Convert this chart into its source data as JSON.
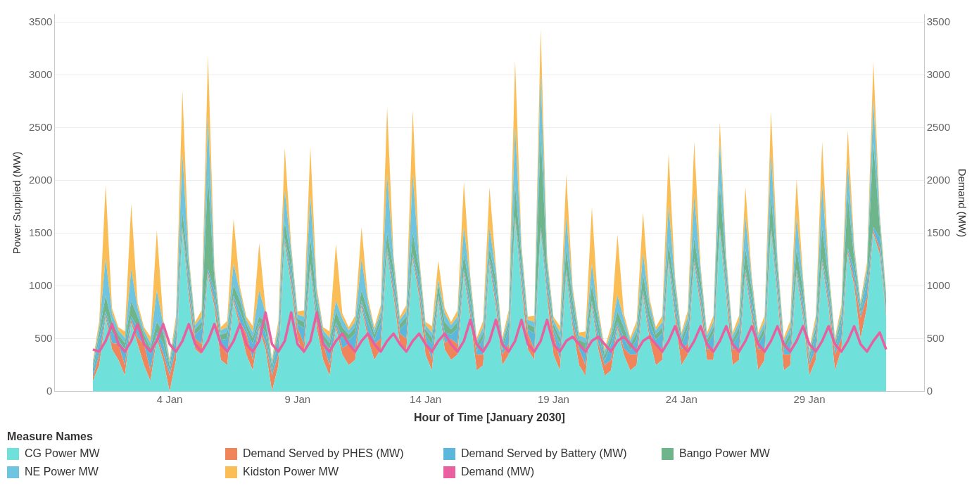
{
  "chart_data": {
    "type": "area",
    "stacked": true,
    "xlabel": "Hour of Time [January 2030]",
    "ylabel": "Power Supplied (MW)",
    "y2label": "Demand (MW)",
    "legend_title": "Measure Names",
    "legend": "bottom",
    "grid": "y",
    "marker": "none",
    "xlim": [
      "2029-12-30T12:00",
      "2030-02-02T12:00"
    ],
    "xticks": [
      {
        "value": "2030-01-04",
        "label": "4 Jan"
      },
      {
        "value": "2030-01-09",
        "label": "9 Jan"
      },
      {
        "value": "2030-01-14",
        "label": "14 Jan"
      },
      {
        "value": "2030-01-19",
        "label": "19 Jan"
      },
      {
        "value": "2030-01-24",
        "label": "24 Jan"
      },
      {
        "value": "2030-01-29",
        "label": "29 Jan"
      }
    ],
    "ylim": [
      0,
      3580
    ],
    "yticks": [
      0,
      500,
      1000,
      1500,
      2000,
      2500,
      3000,
      3500
    ],
    "y2lim": [
      0,
      3580
    ],
    "y2ticks": [
      0,
      500,
      1000,
      1500,
      2000,
      2500,
      3000,
      3500
    ],
    "x": [
      "2030-01-01T00:00",
      "2030-01-01T06:00",
      "2030-01-01T12:00",
      "2030-01-01T18:00",
      "2030-01-02T00:00",
      "2030-01-02T06:00",
      "2030-01-02T12:00",
      "2030-01-02T18:00",
      "2030-01-03T00:00",
      "2030-01-03T06:00",
      "2030-01-03T12:00",
      "2030-01-03T18:00",
      "2030-01-04T00:00",
      "2030-01-04T06:00",
      "2030-01-04T12:00",
      "2030-01-04T18:00",
      "2030-01-05T00:00",
      "2030-01-05T06:00",
      "2030-01-05T12:00",
      "2030-01-05T18:00",
      "2030-01-06T00:00",
      "2030-01-06T06:00",
      "2030-01-06T12:00",
      "2030-01-06T18:00",
      "2030-01-07T00:00",
      "2030-01-07T06:00",
      "2030-01-07T12:00",
      "2030-01-07T18:00",
      "2030-01-08T00:00",
      "2030-01-08T06:00",
      "2030-01-08T12:00",
      "2030-01-08T18:00",
      "2030-01-09T00:00",
      "2030-01-09T06:00",
      "2030-01-09T12:00",
      "2030-01-09T18:00",
      "2030-01-10T00:00",
      "2030-01-10T06:00",
      "2030-01-10T12:00",
      "2030-01-10T18:00",
      "2030-01-11T00:00",
      "2030-01-11T06:00",
      "2030-01-11T12:00",
      "2030-01-11T18:00",
      "2030-01-12T00:00",
      "2030-01-12T06:00",
      "2030-01-12T12:00",
      "2030-01-12T18:00",
      "2030-01-13T00:00",
      "2030-01-13T06:00",
      "2030-01-13T12:00",
      "2030-01-13T18:00",
      "2030-01-14T00:00",
      "2030-01-14T06:00",
      "2030-01-14T12:00",
      "2030-01-14T18:00",
      "2030-01-15T00:00",
      "2030-01-15T06:00",
      "2030-01-15T12:00",
      "2030-01-15T18:00",
      "2030-01-16T00:00",
      "2030-01-16T06:00",
      "2030-01-16T12:00",
      "2030-01-16T18:00",
      "2030-01-17T00:00",
      "2030-01-17T06:00",
      "2030-01-17T12:00",
      "2030-01-17T18:00",
      "2030-01-18T00:00",
      "2030-01-18T06:00",
      "2030-01-18T12:00",
      "2030-01-18T18:00",
      "2030-01-19T00:00",
      "2030-01-19T06:00",
      "2030-01-19T12:00",
      "2030-01-19T18:00",
      "2030-01-20T00:00",
      "2030-01-20T06:00",
      "2030-01-20T12:00",
      "2030-01-20T18:00",
      "2030-01-21T00:00",
      "2030-01-21T06:00",
      "2030-01-21T12:00",
      "2030-01-21T18:00",
      "2030-01-22T00:00",
      "2030-01-22T06:00",
      "2030-01-22T12:00",
      "2030-01-22T18:00",
      "2030-01-23T00:00",
      "2030-01-23T06:00",
      "2030-01-23T12:00",
      "2030-01-23T18:00",
      "2030-01-24T00:00",
      "2030-01-24T06:00",
      "2030-01-24T12:00",
      "2030-01-24T18:00",
      "2030-01-25T00:00",
      "2030-01-25T06:00",
      "2030-01-25T12:00",
      "2030-01-25T18:00",
      "2030-01-26T00:00",
      "2030-01-26T06:00",
      "2030-01-26T12:00",
      "2030-01-26T18:00",
      "2030-01-27T00:00",
      "2030-01-27T06:00",
      "2030-01-27T12:00",
      "2030-01-27T18:00",
      "2030-01-28T00:00",
      "2030-01-28T06:00",
      "2030-01-28T12:00",
      "2030-01-28T18:00",
      "2030-01-29T00:00",
      "2030-01-29T06:00",
      "2030-01-29T12:00",
      "2030-01-29T18:00",
      "2030-01-30T00:00",
      "2030-01-30T06:00",
      "2030-01-30T12:00",
      "2030-01-30T18:00",
      "2030-01-31T00:00",
      "2030-01-31T06:00",
      "2030-01-31T12:00",
      "2030-01-31T18:00",
      "2030-02-01T00:00"
    ],
    "series": [
      {
        "name": "CG Power MW",
        "color": "#6fe0da",
        "values": [
          100,
          250,
          700,
          400,
          300,
          150,
          650,
          450,
          250,
          100,
          500,
          300,
          0,
          300,
          1500,
          900,
          400,
          350,
          1100,
          800,
          300,
          250,
          850,
          600,
          350,
          200,
          600,
          400,
          0,
          250,
          1400,
          1000,
          500,
          350,
          1150,
          600,
          300,
          150,
          600,
          350,
          250,
          300,
          800,
          500,
          300,
          400,
          1300,
          900,
          450,
          400,
          1250,
          900,
          350,
          200,
          850,
          400,
          300,
          350,
          1100,
          700,
          200,
          250,
          1200,
          800,
          250,
          350,
          1600,
          1000,
          400,
          300,
          1500,
          900,
          350,
          200,
          1100,
          600,
          250,
          150,
          800,
          400,
          150,
          200,
          600,
          350,
          200,
          250,
          900,
          500,
          250,
          300,
          1200,
          700,
          250,
          350,
          1200,
          800,
          300,
          300,
          1500,
          900,
          250,
          300,
          1100,
          700,
          200,
          300,
          1500,
          900,
          200,
          250,
          1100,
          700,
          150,
          300,
          1200,
          800,
          200,
          400,
          1300,
          1000,
          500,
          800,
          1500,
          1300,
          700
        ]
      },
      {
        "name": "Demand Served by PHES (MW)",
        "color": "#f0845a",
        "values": [
          30,
          100,
          30,
          60,
          150,
          100,
          30,
          60,
          200,
          100,
          30,
          60,
          150,
          100,
          30,
          60,
          100,
          100,
          30,
          60,
          150,
          100,
          30,
          60,
          200,
          100,
          30,
          60,
          150,
          100,
          30,
          60,
          100,
          100,
          30,
          60,
          150,
          100,
          30,
          60,
          200,
          100,
          30,
          60,
          150,
          100,
          30,
          60,
          100,
          100,
          30,
          60,
          150,
          100,
          30,
          60,
          200,
          100,
          30,
          60,
          150,
          100,
          30,
          60,
          100,
          100,
          30,
          60,
          150,
          100,
          30,
          60,
          200,
          100,
          30,
          60,
          150,
          100,
          30,
          60,
          100,
          100,
          30,
          60,
          150,
          100,
          30,
          60,
          200,
          100,
          30,
          60,
          150,
          100,
          30,
          60,
          100,
          100,
          30,
          60,
          150,
          100,
          30,
          60,
          200,
          100,
          30,
          60,
          150,
          100,
          30,
          60,
          100,
          100,
          30,
          60,
          150,
          100,
          30,
          60,
          200,
          100,
          30,
          60,
          30
        ]
      },
      {
        "name": "Demand Served by Battery (MW)",
        "color": "#5ab8dc",
        "values": [
          40,
          150,
          30,
          100,
          40,
          150,
          30,
          100,
          40,
          150,
          30,
          100,
          40,
          150,
          30,
          100,
          40,
          150,
          30,
          100,
          40,
          150,
          30,
          100,
          40,
          150,
          30,
          100,
          40,
          150,
          30,
          100,
          40,
          150,
          30,
          100,
          40,
          150,
          30,
          100,
          40,
          150,
          30,
          100,
          40,
          150,
          30,
          100,
          40,
          150,
          30,
          100,
          40,
          150,
          30,
          100,
          40,
          150,
          30,
          100,
          40,
          150,
          30,
          100,
          40,
          150,
          30,
          100,
          40,
          150,
          30,
          100,
          40,
          150,
          30,
          100,
          40,
          150,
          30,
          100,
          40,
          150,
          30,
          100,
          40,
          150,
          30,
          100,
          40,
          150,
          30,
          100,
          40,
          150,
          30,
          100,
          40,
          150,
          30,
          100,
          40,
          150,
          30,
          100,
          40,
          150,
          30,
          100,
          40,
          150,
          30,
          100,
          40,
          150,
          30,
          100,
          40,
          150,
          30,
          100,
          40,
          150,
          30,
          100,
          40
        ]
      },
      {
        "name": "Bango Power MW",
        "color": "#6fb58c",
        "values": [
          50,
          60,
          150,
          100,
          50,
          60,
          150,
          100,
          50,
          60,
          100,
          100,
          50,
          60,
          150,
          100,
          50,
          60,
          900,
          100,
          50,
          60,
          100,
          100,
          50,
          60,
          50,
          100,
          50,
          60,
          150,
          100,
          50,
          60,
          250,
          100,
          50,
          60,
          100,
          100,
          50,
          60,
          100,
          100,
          50,
          60,
          150,
          100,
          50,
          60,
          200,
          100,
          50,
          60,
          100,
          100,
          50,
          60,
          150,
          100,
          50,
          60,
          100,
          100,
          50,
          60,
          300,
          100,
          50,
          60,
          900,
          100,
          50,
          60,
          200,
          100,
          50,
          60,
          150,
          100,
          50,
          60,
          100,
          100,
          50,
          60,
          150,
          100,
          50,
          60,
          150,
          100,
          50,
          60,
          200,
          100,
          50,
          60,
          400,
          100,
          50,
          60,
          200,
          100,
          50,
          60,
          300,
          100,
          50,
          60,
          200,
          100,
          50,
          60,
          300,
          100,
          50,
          60,
          500,
          100,
          50,
          60,
          800,
          100,
          100
        ]
      },
      {
        "name": "NE Power MW",
        "color": "#6fc5e0",
        "values": [
          40,
          50,
          350,
          80,
          40,
          50,
          300,
          80,
          40,
          50,
          300,
          80,
          40,
          50,
          550,
          80,
          40,
          50,
          550,
          80,
          40,
          50,
          200,
          80,
          40,
          50,
          250,
          80,
          40,
          50,
          300,
          80,
          40,
          50,
          400,
          80,
          40,
          50,
          100,
          80,
          40,
          50,
          300,
          80,
          40,
          50,
          550,
          80,
          40,
          50,
          550,
          80,
          40,
          50,
          50,
          80,
          40,
          50,
          250,
          80,
          40,
          50,
          200,
          80,
          40,
          50,
          550,
          80,
          40,
          50,
          550,
          80,
          40,
          50,
          300,
          80,
          40,
          50,
          200,
          80,
          40,
          50,
          150,
          80,
          40,
          50,
          200,
          80,
          40,
          50,
          350,
          80,
          40,
          50,
          400,
          80,
          40,
          50,
          400,
          80,
          40,
          50,
          300,
          80,
          40,
          50,
          400,
          80,
          40,
          50,
          300,
          80,
          40,
          50,
          400,
          80,
          40,
          50,
          300,
          80,
          40,
          50,
          400,
          80,
          40
        ]
      },
      {
        "name": "Kidston Power MW",
        "color": "#fbbd56",
        "values": [
          30,
          60,
          700,
          50,
          30,
          60,
          620,
          50,
          30,
          60,
          570,
          50,
          30,
          60,
          600,
          50,
          30,
          60,
          580,
          50,
          30,
          60,
          430,
          50,
          30,
          60,
          450,
          50,
          30,
          60,
          400,
          50,
          30,
          60,
          460,
          50,
          30,
          60,
          540,
          50,
          30,
          60,
          300,
          50,
          30,
          60,
          640,
          50,
          30,
          60,
          610,
          50,
          30,
          60,
          180,
          50,
          30,
          60,
          430,
          50,
          30,
          60,
          380,
          50,
          30,
          60,
          630,
          50,
          30,
          60,
          430,
          50,
          30,
          60,
          400,
          50,
          30,
          60,
          540,
          50,
          30,
          60,
          580,
          50,
          30,
          60,
          390,
          50,
          30,
          60,
          500,
          50,
          30,
          60,
          510,
          50,
          30,
          60,
          200,
          50,
          30,
          60,
          280,
          50,
          30,
          60,
          400,
          50,
          30,
          60,
          360,
          50,
          30,
          60,
          410,
          50,
          30,
          60,
          320,
          50,
          30,
          60,
          370,
          50,
          30
        ]
      },
      {
        "name": "Demand (MW)",
        "type": "line",
        "axis": "y2",
        "color": "#e8609f",
        "line_style": "solid",
        "values": [
          400,
          380,
          480,
          640,
          450,
          380,
          480,
          640,
          450,
          380,
          480,
          640,
          450,
          380,
          480,
          640,
          450,
          380,
          480,
          640,
          450,
          380,
          480,
          640,
          450,
          380,
          480,
          750,
          450,
          380,
          480,
          750,
          450,
          380,
          480,
          750,
          450,
          380,
          480,
          550,
          450,
          380,
          480,
          550,
          450,
          380,
          480,
          550,
          450,
          380,
          480,
          550,
          450,
          380,
          480,
          550,
          450,
          380,
          480,
          680,
          450,
          380,
          480,
          680,
          450,
          380,
          480,
          680,
          450,
          380,
          480,
          680,
          450,
          380,
          480,
          520,
          450,
          380,
          480,
          520,
          450,
          380,
          480,
          520,
          450,
          380,
          480,
          520,
          450,
          380,
          480,
          620,
          450,
          380,
          480,
          620,
          450,
          380,
          480,
          620,
          450,
          380,
          480,
          620,
          450,
          380,
          480,
          620,
          450,
          380,
          480,
          620,
          450,
          380,
          480,
          620,
          450,
          380,
          480,
          620,
          450,
          380,
          480,
          560,
          400
        ]
      }
    ]
  }
}
